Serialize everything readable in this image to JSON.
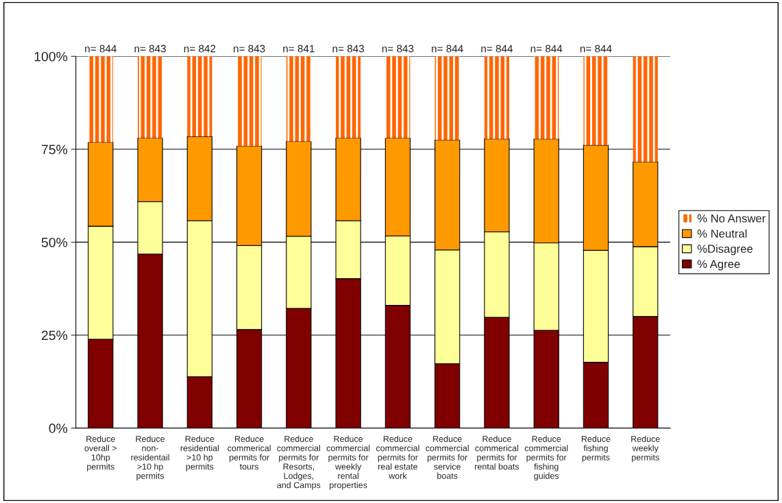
{
  "chart_data": {
    "type": "bar",
    "stacked": true,
    "categories": [
      "Reduce\noverall >\n10hp\npermits",
      "Reduce\nnon-\nresidentail\n>10 hp\npermits",
      "Reduce\nresidential\n>10 hp\npermits",
      "Reduce\ncommerical\npermits for\ntours",
      "Reduce\ncommercial\npermits for\nResorts,\nLodges,\nand Camps",
      "Reduce\ncommercial\npermits for\nweekly\nrental\nproperties",
      "Reduce\ncommercial\npermits for\nreal estate\nwork",
      "Reduce\ncommercial\npermits for\nservice\nboats",
      "Reduce\ncommerical\npermits for\nrental boats",
      "Reduce\ncommercial\npermits for\nfishing\nguides",
      "Reduce\nfishing\npermits",
      "Reduce\nweekly\npermits"
    ],
    "series": [
      {
        "name": "% Agree",
        "color": "#800000",
        "values": [
          23.9,
          46.8,
          13.8,
          26.5,
          32.2,
          40.2,
          33.0,
          17.3,
          29.8,
          26.3,
          17.7,
          30.0
        ]
      },
      {
        "name": "%Disagree",
        "color": "#ffff99",
        "values": [
          30.4,
          14.1,
          42.0,
          22.6,
          19.4,
          15.6,
          18.7,
          30.6,
          23.0,
          23.5,
          30.1,
          18.8
        ]
      },
      {
        "name": "% Neutral",
        "color": "#ff9900",
        "values": [
          22.6,
          17.1,
          22.6,
          26.8,
          25.5,
          22.2,
          26.3,
          29.6,
          25.0,
          28.0,
          28.3,
          22.8
        ]
      },
      {
        "name": "% No Answer",
        "color": "#ff6600",
        "values": [
          23.1,
          22.0,
          21.6,
          24.1,
          22.9,
          22.0,
          22.0,
          22.5,
          22.2,
          22.2,
          23.9,
          28.4
        ]
      }
    ],
    "ylim": [
      0,
      100
    ],
    "yticks": [
      {
        "value": 0,
        "label": "0%"
      },
      {
        "value": 25,
        "label": "25%"
      },
      {
        "value": 50,
        "label": "50%"
      },
      {
        "value": 75,
        "label": "75%"
      },
      {
        "value": 100,
        "label": "100%"
      }
    ],
    "grid": "y",
    "legend": "right",
    "annotations": [
      {
        "text": "n= 844",
        "x": "Reduce\noverall >\n10hp\npermits",
        "y": 100
      },
      {
        "text": "n= 843",
        "x": "Reduce\nnon-\nresidentail\n>10 hp\npermits",
        "y": 100
      },
      {
        "text": "n= 842",
        "x": "Reduce\nresidential\n>10 hp\npermits",
        "y": 100
      },
      {
        "text": "n= 843",
        "x": "Reduce\ncommerical\npermits for\ntours",
        "y": 100
      },
      {
        "text": "n= 841",
        "x": "Reduce\ncommercial\npermits for\nResorts,\nLodges,\nand Camps",
        "y": 100
      },
      {
        "text": "n= 843",
        "x": "Reduce\ncommercial\npermits for\nweekly\nrental\nproperties",
        "y": 100
      },
      {
        "text": "n= 843",
        "x": "Reduce\ncommercial\npermits for\nreal estate\nwork",
        "y": 100
      },
      {
        "text": "n= 844",
        "x": "Reduce\ncommercial\npermits for\nservice\nboats",
        "y": 100
      },
      {
        "text": "n= 844",
        "x": "Reduce\ncommerical\npermits for\nrental boats",
        "y": 100
      },
      {
        "text": "n= 844",
        "x": "Reduce\ncommercial\npermits for\nfishing\nguides",
        "y": 100
      },
      {
        "text": "n= 844",
        "x": "Reduce\nfishing\npermits",
        "y": 100
      }
    ]
  }
}
